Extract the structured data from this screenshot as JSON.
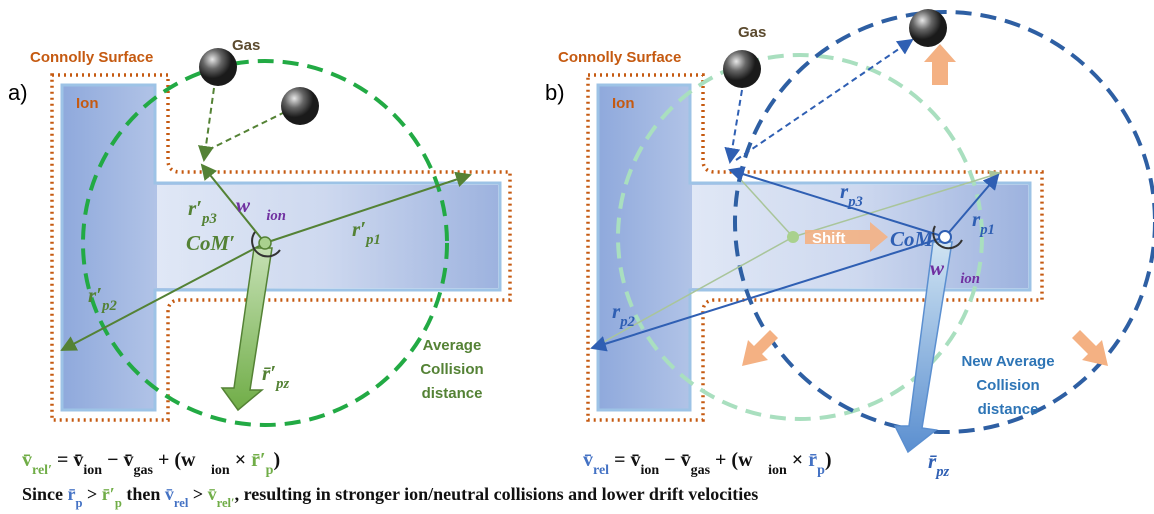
{
  "panel_a": {
    "label": "a)",
    "connolly": "Connolly Surface",
    "gas": "Gas",
    "ion": "Ion",
    "com": [
      {
        "t": "CoM′"
      }
    ],
    "omega": [
      {
        "t": "w⃗",
        "sub": "ion"
      }
    ],
    "r_p1": [
      {
        "t": "r′",
        "sub": "p1"
      }
    ],
    "r_p2": [
      {
        "t": "r′",
        "sub": "p2"
      }
    ],
    "r_p3": [
      {
        "t": "r′",
        "sub": "p3"
      }
    ],
    "r_pz": [
      {
        "t": "r̄′",
        "sub": "pz"
      }
    ],
    "collision": [
      "Average",
      "Collision",
      "distance"
    ]
  },
  "panel_b": {
    "label": "b)",
    "connolly": "Connolly Surface",
    "gas": "Gas",
    "ion": "Ion",
    "com": [
      {
        "t": "CoM"
      }
    ],
    "omega": [
      {
        "t": "w⃗",
        "sub": "ion"
      }
    ],
    "r_p1": [
      {
        "t": "r",
        "sub": "p1"
      }
    ],
    "r_p2": [
      {
        "t": "r",
        "sub": "p2"
      }
    ],
    "r_p3": [
      {
        "t": "r",
        "sub": "p3"
      }
    ],
    "r_pz": [
      {
        "t": "r̄",
        "sub": "pz"
      }
    ],
    "shift": "Shift",
    "collision": [
      "New Average",
      "Collision",
      "distance"
    ]
  },
  "equation_a": [
    {
      "t": "v̄",
      "sub": "rel′",
      "color": "#70ad47"
    },
    {
      "t": " = "
    },
    {
      "t": "v̄",
      "sub": "ion"
    },
    {
      "t": " − "
    },
    {
      "t": "v̄",
      "sub": "gas"
    },
    {
      "t": " + ("
    },
    {
      "t": "w⃗",
      "sub": "ion"
    },
    {
      "t": " × "
    },
    {
      "t": "r̄′",
      "sub": "p",
      "color": "#70ad47"
    },
    {
      "t": ")"
    }
  ],
  "equation_b": [
    {
      "t": "v̄",
      "sub": "rel",
      "color": "#4472c4"
    },
    {
      "t": " = "
    },
    {
      "t": "v̄",
      "sub": "ion"
    },
    {
      "t": " − "
    },
    {
      "t": "v̄",
      "sub": "gas"
    },
    {
      "t": " + ("
    },
    {
      "t": "w⃗",
      "sub": "ion"
    },
    {
      "t": " × "
    },
    {
      "t": "r̄",
      "sub": "p",
      "color": "#4472c4"
    },
    {
      "t": ")"
    }
  ],
  "conclusion": [
    {
      "t": "Since "
    },
    {
      "t": "r̄",
      "sub": "p",
      "color": "#4472c4"
    },
    {
      "t": " > "
    },
    {
      "t": "r̄′",
      "sub": "p",
      "color": "#70ad47"
    },
    {
      "t": " then "
    },
    {
      "t": "v̄",
      "sub": "rel",
      "color": "#4472c4"
    },
    {
      "t": " > "
    },
    {
      "t": "v̄",
      "sub": "rel′",
      "color": "#70ad47"
    },
    {
      "t": ", resulting in stronger ion/neutral collisions and lower drift velocities"
    }
  ]
}
